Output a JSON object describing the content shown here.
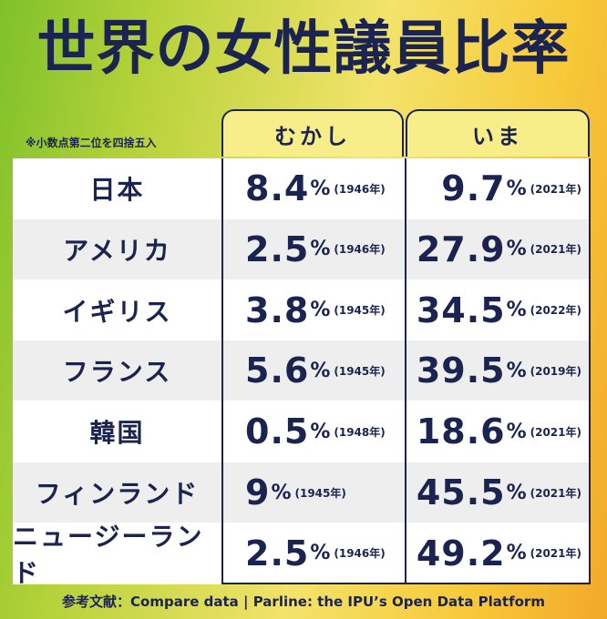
{
  "title": "世界の女性議員比率",
  "note": "※小数点第二位を四捨五入",
  "chart_data": {
    "type": "table",
    "columns": [
      "むかし",
      "いま"
    ],
    "rows": [
      {
        "country": "日本",
        "old_value": "8.4",
        "old_year": "(1946年)",
        "new_value": "9.7",
        "new_year": "(2021年)"
      },
      {
        "country": "アメリカ",
        "old_value": "2.5",
        "old_year": "(1946年)",
        "new_value": "27.9",
        "new_year": "(2021年)"
      },
      {
        "country": "イギリス",
        "old_value": "3.8",
        "old_year": "(1945年)",
        "new_value": "34.5",
        "new_year": "(2022年)"
      },
      {
        "country": "フランス",
        "old_value": "5.6",
        "old_year": "(1945年)",
        "new_value": "39.5",
        "new_year": "(2019年)"
      },
      {
        "country": "韓国",
        "old_value": "0.5",
        "old_year": "(1948年)",
        "new_value": "18.6",
        "new_year": "(2021年)"
      },
      {
        "country": "フィンランド",
        "old_value": "9",
        "old_year": "(1945年)",
        "new_value": "45.5",
        "new_year": "(2021年)"
      },
      {
        "country": "ニュージーランド",
        "old_value": "2.5",
        "old_year": "(1946年)",
        "new_value": "49.2",
        "new_year": "(2021年)"
      }
    ],
    "unit": "%"
  },
  "source": "参考文献：Compare data | Parline: the IPU’s Open Data Platform"
}
